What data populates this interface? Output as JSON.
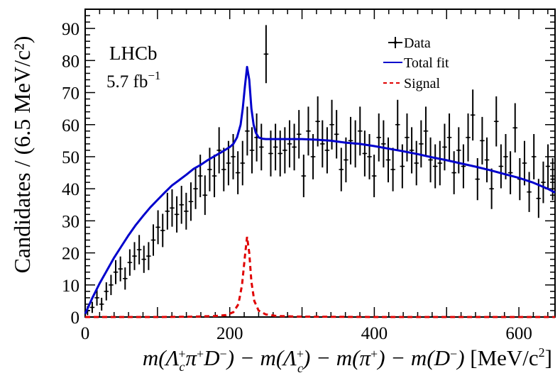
{
  "chart_data": {
    "type": "scatter",
    "experiment": "LHCb",
    "luminosity_prefix": "5.7 fb",
    "luminosity_exp": "−1",
    "ylabel": "Candidates / (6.5 MeV/c²)",
    "xlabel_parts": {
      "m1": "m(Λ",
      "c1": "c",
      "plus1": "+",
      "mid1": "π",
      "plus2": "+",
      "d1": "D",
      "minus1": "−",
      "close1": ") − m(Λ",
      "plus3": "+",
      "c2": "c",
      "close2": ") − m(π",
      "plus4": "+",
      "close3": ") − m(D",
      "minus2": "−",
      "close4": ")",
      "unit": " [MeV/c",
      "unitexp": "2",
      "unitclose": "]"
    },
    "xlim": [
      0,
      650
    ],
    "ylim": [
      0,
      96
    ],
    "x_ticks": [
      "0",
      "200",
      "400",
      "600"
    ],
    "x_tick_values": [
      0,
      200,
      400,
      600
    ],
    "y_ticks": [
      "0",
      "10",
      "20",
      "30",
      "40",
      "50",
      "60",
      "70",
      "80",
      "90"
    ],
    "y_tick_values": [
      0,
      10,
      20,
      30,
      40,
      50,
      60,
      70,
      80,
      90
    ],
    "legend": {
      "data_label": "Data",
      "total_label": "Total fit",
      "signal_label": "Signal",
      "placement": "top-right"
    },
    "colors": {
      "data": "#000000",
      "total_fit": "#0000cc",
      "signal": "#e00000"
    },
    "bin_width": 6.5,
    "x": [
      3.25,
      9.75,
      16.25,
      22.75,
      29.25,
      35.75,
      42.25,
      48.75,
      55.25,
      61.75,
      68.25,
      74.75,
      81.25,
      87.75,
      94.25,
      100.75,
      107.25,
      113.75,
      120.25,
      126.75,
      133.25,
      139.75,
      146.25,
      152.75,
      159.25,
      165.75,
      172.25,
      178.75,
      185.25,
      191.75,
      198.25,
      204.75,
      211.25,
      217.75,
      224.25,
      230.75,
      237.25,
      243.75,
      250.25,
      256.75,
      263.25,
      269.75,
      276.25,
      282.75,
      289.25,
      295.75,
      302.25,
      308.75,
      315.25,
      321.75,
      328.25,
      334.75,
      341.25,
      347.75,
      354.25,
      360.75,
      367.25,
      373.75,
      380.25,
      386.75,
      393.25,
      399.75,
      406.25,
      412.75,
      419.25,
      425.75,
      432.25,
      438.75,
      445.25,
      451.75,
      458.25,
      464.75,
      471.25,
      477.75,
      484.25,
      490.75,
      497.25,
      503.75,
      510.25,
      516.75,
      523.25,
      529.75,
      536.25,
      542.75,
      549.25,
      555.75,
      562.25,
      568.75,
      575.25,
      581.75,
      588.25,
      594.75,
      601.25,
      607.75,
      614.25,
      620.75,
      627.25,
      633.75,
      640.25,
      646.75
    ],
    "y": [
      2,
      3,
      6,
      4,
      8,
      10,
      14,
      15,
      12,
      17,
      19,
      21,
      18,
      19,
      24,
      28,
      27,
      33,
      34,
      32,
      35,
      33,
      36,
      40,
      44,
      38,
      46,
      44,
      52,
      46,
      48,
      50,
      45,
      48,
      58,
      52,
      56,
      53,
      82,
      51,
      53,
      51,
      52,
      54,
      53,
      57,
      44,
      58,
      50,
      61,
      54,
      52,
      60,
      57,
      46,
      49,
      55,
      54,
      58,
      51,
      50,
      44,
      56,
      54,
      49,
      46,
      60,
      47,
      56,
      52,
      48,
      54,
      58,
      49,
      47,
      48,
      53,
      56,
      45,
      52,
      47,
      56,
      63,
      43,
      55,
      49,
      40,
      61,
      47,
      50,
      45,
      59,
      43,
      48,
      39,
      50,
      37,
      42,
      47,
      43
    ],
    "total_fit_x": [
      0,
      10,
      20,
      30,
      40,
      50,
      60,
      70,
      80,
      90,
      100,
      110,
      120,
      130,
      140,
      150,
      160,
      170,
      180,
      190,
      200,
      205,
      210,
      215,
      218,
      221,
      224,
      227,
      230,
      233,
      236,
      240,
      245,
      250,
      255,
      260,
      270,
      280,
      300,
      320,
      340,
      360,
      380,
      400,
      420,
      440,
      460,
      480,
      500,
      520,
      540,
      560,
      580,
      600,
      620,
      640,
      650
    ],
    "total_fit_y": [
      1,
      6,
      10.5,
      14.5,
      18.5,
      22,
      25.5,
      28.7,
      31.5,
      34.2,
      36.5,
      38.8,
      41,
      42.7,
      44.4,
      46.2,
      47.5,
      49,
      50.3,
      51.6,
      53,
      54,
      56,
      60,
      65,
      72,
      78,
      74,
      65,
      60,
      57.5,
      56,
      55.6,
      55.5,
      55.5,
      55.5,
      55.5,
      55.5,
      55.5,
      55.3,
      55,
      54.4,
      54,
      53.3,
      52.5,
      51.7,
      50.8,
      49.8,
      48.9,
      47.9,
      46.9,
      45.8,
      44.6,
      43.4,
      41.9,
      40,
      38.8
    ],
    "signal_x": [
      0,
      100,
      150,
      180,
      195,
      205,
      212,
      217,
      221,
      224,
      227,
      230,
      234,
      240,
      250,
      265,
      300,
      400,
      500,
      650
    ],
    "signal_y": [
      0,
      0,
      0.1,
      0.3,
      0.6,
      1.5,
      4,
      10,
      19,
      25,
      20,
      11,
      5,
      2,
      0.8,
      0.3,
      0.1,
      0,
      0,
      0
    ]
  }
}
